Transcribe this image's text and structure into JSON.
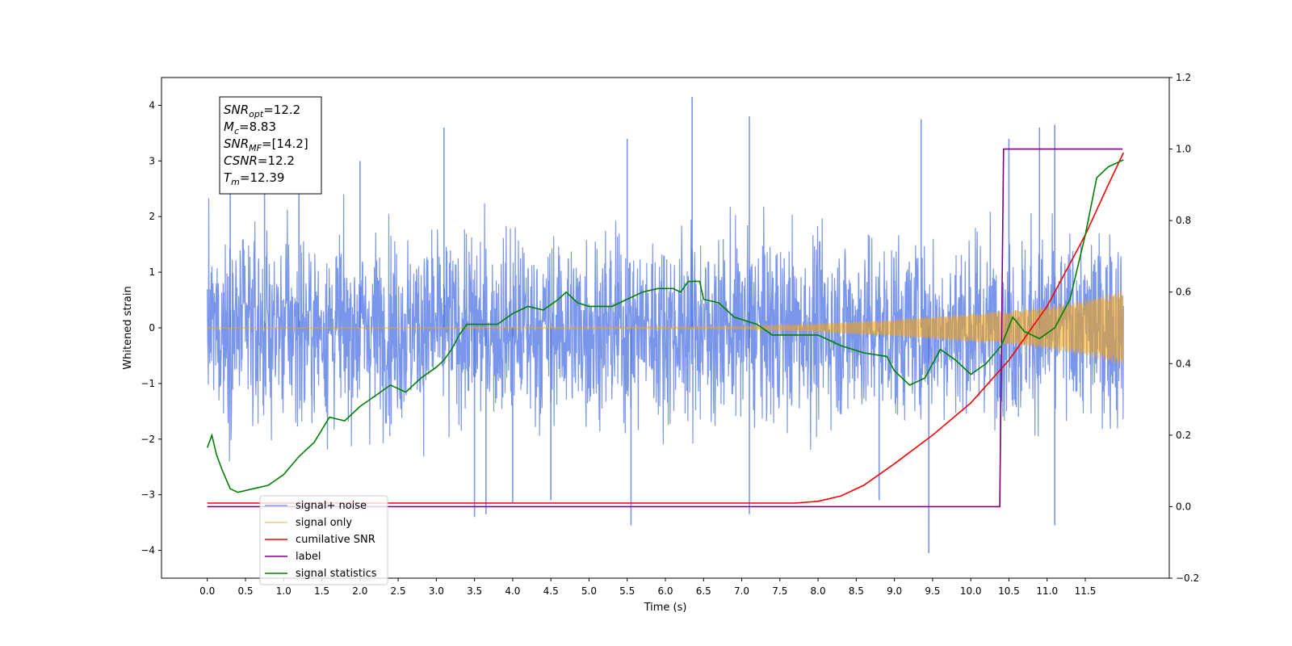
{
  "chart_data": {
    "type": "line",
    "xlabel": "Time (s)",
    "ylabel": "Whitened strain",
    "xlim": [
      -0.6,
      12.6
    ],
    "ylim": [
      -4.5,
      4.5
    ],
    "y2lim": [
      -0.2,
      1.2
    ],
    "x_ticks": [
      0.0,
      0.5,
      1.0,
      1.5,
      2.0,
      2.5,
      3.0,
      3.5,
      4.0,
      4.5,
      5.0,
      5.5,
      6.0,
      6.5,
      7.0,
      7.5,
      8.0,
      8.5,
      9.0,
      9.5,
      10.0,
      10.5,
      11.0,
      11.5
    ],
    "x_tick_labels": [
      "0.0",
      "0.5",
      "1.0",
      "1.5",
      "2.0",
      "2.5",
      "3.0",
      "3.5",
      "4.0",
      "4.5",
      "5.0",
      "5.5",
      "6.0",
      "6.5",
      "7.0",
      "7.5",
      "8.0",
      "8.5",
      "9.0",
      "9.5",
      "10.0",
      "10.5",
      "11.0",
      "11.5"
    ],
    "y_ticks": [
      4,
      3,
      2,
      1,
      0,
      -1,
      -2,
      -3,
      -4
    ],
    "y_tick_labels": [
      "4",
      "3",
      "2",
      "1",
      "0",
      "−1",
      "−2",
      "−3",
      "−4"
    ],
    "y2_ticks": [
      1.2,
      1.0,
      0.8,
      0.6,
      0.4,
      0.2,
      0.0,
      -0.2
    ],
    "y2_tick_labels": [
      "1.2",
      "1.0",
      "0.8",
      "0.6",
      "0.4",
      "0.2",
      "0.0",
      "−0.2"
    ],
    "grid": false,
    "legend_position": "lower-left",
    "series": [
      {
        "name": "signal+ noise",
        "color": "#4169e1",
        "axis": "left",
        "style": "noisy time series, approx. |strain| <= 2 with spikes up to about 4.1",
        "x_range": [
          0.0,
          12.0
        ],
        "peak_points": [
          [
            0.3,
            3.0
          ],
          [
            0.75,
            2.9
          ],
          [
            1.2,
            3.1
          ],
          [
            2.0,
            3.0
          ],
          [
            3.1,
            3.6
          ],
          [
            3.5,
            -3.4
          ],
          [
            3.65,
            -3.35
          ],
          [
            4.0,
            -3.15
          ],
          [
            4.5,
            -3.1
          ],
          [
            5.5,
            3.4
          ],
          [
            5.55,
            -3.55
          ],
          [
            6.35,
            4.15
          ],
          [
            7.1,
            3.8
          ],
          [
            7.1,
            -3.35
          ],
          [
            8.8,
            -3.1
          ],
          [
            9.35,
            3.75
          ],
          [
            9.45,
            -4.05
          ],
          [
            10.5,
            3.4
          ],
          [
            10.9,
            3.6
          ],
          [
            11.1,
            3.65
          ],
          [
            11.1,
            -3.55
          ]
        ]
      },
      {
        "name": "signal only",
        "color": "#ffa500",
        "axis": "left",
        "style": "chirp with amplitude growing toward the end",
        "amplitude_points": [
          [
            0.0,
            0.0
          ],
          [
            7.0,
            0.02
          ],
          [
            8.0,
            0.07
          ],
          [
            9.0,
            0.15
          ],
          [
            10.0,
            0.25
          ],
          [
            10.5,
            0.3
          ],
          [
            11.0,
            0.38
          ],
          [
            11.5,
            0.5
          ],
          [
            12.0,
            0.68
          ]
        ]
      },
      {
        "name": "cumilative SNR",
        "color": "#ff0000",
        "axis": "right",
        "points": [
          [
            0.0,
            0.01
          ],
          [
            7.7,
            0.01
          ],
          [
            8.0,
            0.015
          ],
          [
            8.3,
            0.03
          ],
          [
            8.6,
            0.06
          ],
          [
            9.0,
            0.12
          ],
          [
            9.5,
            0.2
          ],
          [
            10.0,
            0.29
          ],
          [
            10.5,
            0.41
          ],
          [
            11.0,
            0.56
          ],
          [
            11.5,
            0.76
          ],
          [
            11.8,
            0.9
          ],
          [
            12.0,
            0.99
          ]
        ]
      },
      {
        "name": "label",
        "color": "#800080",
        "axis": "right",
        "points": [
          [
            0.0,
            0.0
          ],
          [
            10.38,
            0.0
          ],
          [
            10.43,
            1.0
          ],
          [
            11.99,
            1.0
          ]
        ]
      },
      {
        "name": "signal statistics",
        "color": "#008000",
        "axis": "right",
        "points": [
          [
            0.0,
            0.165
          ],
          [
            0.06,
            0.2
          ],
          [
            0.12,
            0.145
          ],
          [
            0.2,
            0.1
          ],
          [
            0.3,
            0.05
          ],
          [
            0.4,
            0.04
          ],
          [
            0.6,
            0.05
          ],
          [
            0.8,
            0.06
          ],
          [
            1.0,
            0.09
          ],
          [
            1.2,
            0.14
          ],
          [
            1.4,
            0.18
          ],
          [
            1.6,
            0.25
          ],
          [
            1.8,
            0.24
          ],
          [
            2.0,
            0.28
          ],
          [
            2.2,
            0.31
          ],
          [
            2.4,
            0.34
          ],
          [
            2.6,
            0.32
          ],
          [
            2.8,
            0.36
          ],
          [
            3.0,
            0.39
          ],
          [
            3.1,
            0.41
          ],
          [
            3.2,
            0.44
          ],
          [
            3.3,
            0.48
          ],
          [
            3.4,
            0.51
          ],
          [
            3.6,
            0.51
          ],
          [
            3.8,
            0.51
          ],
          [
            4.0,
            0.54
          ],
          [
            4.2,
            0.56
          ],
          [
            4.4,
            0.55
          ],
          [
            4.6,
            0.58
          ],
          [
            4.7,
            0.6
          ],
          [
            4.85,
            0.57
          ],
          [
            5.0,
            0.56
          ],
          [
            5.3,
            0.56
          ],
          [
            5.5,
            0.58
          ],
          [
            5.7,
            0.6
          ],
          [
            5.9,
            0.61
          ],
          [
            6.1,
            0.61
          ],
          [
            6.2,
            0.6
          ],
          [
            6.3,
            0.63
          ],
          [
            6.45,
            0.63
          ],
          [
            6.5,
            0.58
          ],
          [
            6.7,
            0.57
          ],
          [
            6.9,
            0.53
          ],
          [
            7.2,
            0.51
          ],
          [
            7.4,
            0.48
          ],
          [
            7.6,
            0.48
          ],
          [
            7.8,
            0.48
          ],
          [
            8.0,
            0.48
          ],
          [
            8.3,
            0.45
          ],
          [
            8.6,
            0.43
          ],
          [
            8.9,
            0.42
          ],
          [
            9.0,
            0.38
          ],
          [
            9.2,
            0.34
          ],
          [
            9.4,
            0.36
          ],
          [
            9.6,
            0.44
          ],
          [
            9.8,
            0.41
          ],
          [
            10.0,
            0.37
          ],
          [
            10.2,
            0.4
          ],
          [
            10.4,
            0.45
          ],
          [
            10.55,
            0.53
          ],
          [
            10.7,
            0.49
          ],
          [
            10.9,
            0.47
          ],
          [
            11.1,
            0.5
          ],
          [
            11.3,
            0.58
          ],
          [
            11.5,
            0.76
          ],
          [
            11.65,
            0.92
          ],
          [
            11.8,
            0.95
          ],
          [
            12.0,
            0.97
          ]
        ]
      }
    ],
    "annotation": {
      "lines": [
        {
          "var": "SNR",
          "sub": "opt",
          "value": "=12.2"
        },
        {
          "var": "M",
          "sub": "c",
          "value": "=8.83"
        },
        {
          "var": "SNR",
          "sub": "MF",
          "value": "=[14.2]"
        },
        {
          "var": "CSNR",
          "sub": "",
          "value": "=12.2"
        },
        {
          "var": "T",
          "sub": "m",
          "value": "=12.39"
        }
      ]
    },
    "legend_entries": [
      {
        "label": "signal+ noise",
        "color": "#4169e1"
      },
      {
        "label": "signal only",
        "color": "#ffa500"
      },
      {
        "label": "cumilative SNR",
        "color": "#ff0000"
      },
      {
        "label": "label",
        "color": "#800080"
      },
      {
        "label": "signal statistics",
        "color": "#008000"
      }
    ]
  }
}
